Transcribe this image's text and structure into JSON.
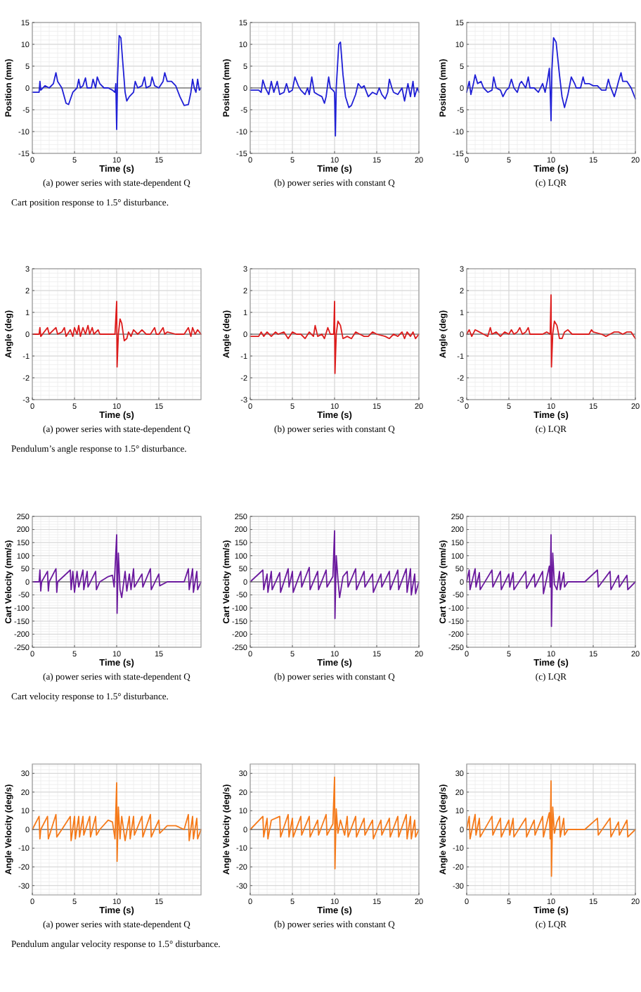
{
  "chart_data": [
    {
      "type": "line",
      "xlabel": "Time (s)",
      "ylabel": "Position (mm)",
      "subtitle": "(a) power series with state-dependent Q",
      "annotations": [
        "Cart position response to 1.5° disturbance."
      ],
      "xlim": [
        0,
        20
      ],
      "xticks": [
        0,
        5,
        10,
        15
      ],
      "ylim": [
        -15,
        15
      ],
      "yticks": [
        -15,
        -10,
        -5,
        0,
        5,
        10,
        15
      ],
      "grid": true,
      "ref_lines": [
        {
          "axis": "y",
          "value": 0,
          "color": "#808080"
        }
      ],
      "x": [
        0,
        0.8,
        0.9,
        1,
        1.5,
        2,
        2.5,
        2.8,
        3,
        3.5,
        4,
        4.3,
        4.8,
        5.3,
        5.5,
        5.7,
        6,
        6.3,
        6.5,
        7,
        7.2,
        7.5,
        7.7,
        8,
        8.5,
        9,
        9.5,
        9.8,
        9.9,
        10,
        10.1,
        10.3,
        10.5,
        10.8,
        11,
        11.2,
        11.5,
        12,
        12.2,
        12.5,
        13,
        13.3,
        13.5,
        14,
        14.2,
        14.5,
        15,
        15.5,
        15.7,
        16,
        16.5,
        17,
        17.5,
        18,
        18.5,
        18.8,
        19,
        19.2,
        19.4,
        19.6,
        19.8,
        20
      ],
      "series": [
        {
          "color": "#1f1fd6",
          "values": [
            -1,
            -1,
            1.5,
            -0.5,
            0.5,
            0,
            1,
            3.5,
            1.5,
            0,
            -3.5,
            -3.8,
            -1,
            0,
            2,
            0,
            0.5,
            2.3,
            0,
            0,
            2,
            0,
            2.5,
            1,
            0,
            0,
            -0.5,
            -1,
            1,
            -9.5,
            2,
            12,
            11.5,
            4,
            -1,
            -3,
            -2,
            -1,
            1.5,
            0,
            0.5,
            2.5,
            0,
            0.5,
            2.5,
            0.5,
            0,
            1.5,
            3.5,
            1.5,
            1.5,
            0.5,
            -2,
            -4,
            -3.8,
            -1,
            2,
            0,
            -1,
            2,
            -0.5,
            0
          ]
        }
      ]
    },
    {
      "type": "line",
      "xlabel": "Time (s)",
      "ylabel": "Position (mm)",
      "subtitle": "(b) power series with constant Q",
      "xlim": [
        0,
        20
      ],
      "xticks": [
        0,
        5,
        10,
        15,
        20
      ],
      "ylim": [
        -15,
        15
      ],
      "yticks": [
        -15,
        -10,
        -5,
        0,
        5,
        10,
        15
      ],
      "grid": true,
      "ref_lines": [
        {
          "axis": "y",
          "value": 0,
          "color": "#808080"
        }
      ],
      "x": [
        0,
        1,
        1.3,
        1.5,
        1.8,
        2.2,
        2.5,
        2.8,
        3.2,
        3.5,
        4,
        4.3,
        4.6,
        5,
        5.3,
        5.7,
        6,
        6.5,
        6.8,
        7,
        7.3,
        7.6,
        8,
        8.5,
        8.8,
        9,
        9.3,
        9.5,
        9.8,
        10,
        10.1,
        10.2,
        10.5,
        10.7,
        11,
        11.3,
        11.7,
        12,
        12.5,
        12.8,
        13.2,
        13.5,
        14,
        14.5,
        15,
        15.3,
        15.6,
        16,
        16.3,
        16.5,
        16.8,
        17,
        17.5,
        18,
        18.3,
        18.7,
        19,
        19.3,
        19.5,
        19.8,
        20
      ],
      "series": [
        {
          "color": "#1f1fd6",
          "values": [
            -0.5,
            -0.5,
            -1,
            1.8,
            0,
            -1.5,
            1.5,
            -1,
            1.5,
            -1.5,
            -1,
            1,
            -1,
            -0.5,
            2.5,
            0.5,
            -0.5,
            -1.5,
            0,
            -1.5,
            2.5,
            -1,
            -1.5,
            -2,
            -3.5,
            -2,
            2.5,
            0,
            -0.5,
            -1,
            -11,
            0,
            10,
            10.5,
            3,
            -2,
            -4.5,
            -4,
            -1.5,
            1,
            0,
            0.5,
            -2,
            -1,
            -1.5,
            0,
            -1.5,
            -2.5,
            -1,
            2,
            0,
            -1,
            -1.5,
            0,
            -3,
            1,
            -2,
            1.5,
            -2,
            0,
            -1
          ]
        }
      ]
    },
    {
      "type": "line",
      "xlabel": "Time (s)",
      "ylabel": "Position (mm)",
      "subtitle": "(c) LQR",
      "xlim": [
        0,
        20
      ],
      "xticks": [
        0,
        5,
        10,
        15,
        20
      ],
      "ylim": [
        -15,
        15
      ],
      "yticks": [
        -15,
        -10,
        -5,
        0,
        5,
        10,
        15
      ],
      "grid": true,
      "ref_lines": [
        {
          "axis": "y",
          "value": 0,
          "color": "#808080"
        }
      ],
      "x": [
        0,
        0.3,
        0.5,
        0.8,
        1,
        1.3,
        1.7,
        2,
        2.5,
        3,
        3.2,
        3.5,
        4,
        4.3,
        4.7,
        5,
        5.3,
        5.6,
        6,
        6.3,
        6.5,
        7,
        7.3,
        7.5,
        8,
        8.5,
        9,
        9.3,
        9.6,
        9.8,
        9.9,
        10,
        10.1,
        10.3,
        10.6,
        11,
        11.3,
        11.6,
        12,
        12.4,
        12.8,
        13,
        13.5,
        13.8,
        14,
        14.5,
        15,
        15.5,
        16,
        16.5,
        16.8,
        17,
        17.5,
        17.8,
        18,
        18.3,
        18.5,
        19,
        19.5,
        20
      ],
      "series": [
        {
          "color": "#1f1fd6",
          "values": [
            -1,
            1.5,
            -1.5,
            1,
            3,
            1,
            1.5,
            0,
            -1,
            -0.5,
            2.5,
            0,
            -0.5,
            -2,
            -0.5,
            0,
            2,
            0,
            -1,
            1,
            1.5,
            0,
            2.5,
            0,
            0,
            -1,
            1,
            -1,
            2,
            4.5,
            -0.5,
            -7.5,
            4,
            11.5,
            10.5,
            3,
            -2,
            -4.5,
            -1.5,
            2.5,
            1,
            0,
            0,
            2.5,
            1,
            1,
            0.5,
            0.5,
            -0.5,
            -0.5,
            2,
            0.5,
            -2,
            0,
            1.5,
            3.5,
            1.5,
            1.5,
            0,
            -2.5
          ]
        }
      ]
    },
    {
      "type": "line",
      "xlabel": "Time (s)",
      "ylabel": "Angle (deg)",
      "subtitle": "(a) power series with state-dependent Q",
      "annotations": [
        "Pendulum’s angle response to 1.5° disturbance."
      ],
      "xlim": [
        0,
        20
      ],
      "xticks": [
        0,
        5,
        10,
        15
      ],
      "ylim": [
        -3,
        3
      ],
      "yticks": [
        -3,
        -2,
        -1,
        0,
        1,
        2,
        3
      ],
      "grid": true,
      "ref_lines": [
        {
          "axis": "y",
          "value": 0,
          "color": "#808080"
        }
      ],
      "x": [
        0,
        0.8,
        0.9,
        1,
        1.8,
        2,
        2.8,
        3,
        3.5,
        3.8,
        4,
        4.5,
        4.8,
        5,
        5.3,
        5.5,
        5.7,
        6,
        6.3,
        6.6,
        6.8,
        7.1,
        7.3,
        7.8,
        8,
        9,
        9.8,
        10,
        10.05,
        10.2,
        10.4,
        10.6,
        10.9,
        11.2,
        11.4,
        11.7,
        12,
        12.5,
        13,
        13.5,
        14,
        14.5,
        14.7,
        15,
        15.5,
        15.7,
        16,
        17,
        18,
        18.5,
        18.8,
        19,
        19.3,
        19.6,
        20
      ],
      "series": [
        {
          "color": "#dd1c1c",
          "values": [
            0,
            0,
            0.3,
            -0.1,
            0.3,
            0,
            0.3,
            0,
            0.1,
            0.3,
            -0.1,
            0.2,
            -0.1,
            0.3,
            0,
            0.4,
            -0.1,
            0.3,
            0,
            0.4,
            0,
            0.3,
            0,
            0.2,
            0,
            0,
            0,
            1.5,
            -1.5,
            0,
            0.7,
            0.5,
            -0.3,
            -0.2,
            0.1,
            -0.1,
            0.2,
            0,
            0.2,
            0,
            0,
            0.3,
            0,
            0,
            0.3,
            0,
            0.1,
            0,
            0,
            0.3,
            -0.1,
            0.3,
            0,
            0.2,
            0
          ]
        }
      ]
    },
    {
      "type": "line",
      "xlabel": "Time (s)",
      "ylabel": "Angle (deg)",
      "subtitle": "(b) power series with constant Q",
      "xlim": [
        0,
        20
      ],
      "xticks": [
        0,
        5,
        10,
        15,
        20
      ],
      "ylim": [
        -3,
        3
      ],
      "yticks": [
        -3,
        -2,
        -1,
        0,
        1,
        2,
        3
      ],
      "grid": true,
      "ref_lines": [
        {
          "axis": "y",
          "value": 0,
          "color": "#808080"
        }
      ],
      "x": [
        0,
        1,
        1.3,
        1.6,
        2,
        2.5,
        3,
        3.3,
        4,
        4.5,
        5,
        5.5,
        6,
        6.5,
        7,
        7.5,
        7.7,
        8,
        8.5,
        8.8,
        9.2,
        9.5,
        9.9,
        10,
        10.05,
        10.2,
        10.4,
        10.7,
        11,
        11.5,
        12,
        12.5,
        13,
        13.5,
        14,
        14.5,
        15,
        16,
        16.5,
        17,
        17.5,
        18,
        18.3,
        18.6,
        19,
        19.3,
        19.6,
        20
      ],
      "series": [
        {
          "color": "#dd1c1c",
          "values": [
            -0.1,
            -0.1,
            0.1,
            -0.1,
            0.1,
            -0.1,
            0.1,
            0,
            0.1,
            -0.2,
            0.1,
            0,
            0,
            -0.2,
            0.1,
            -0.1,
            0.4,
            -0.1,
            0,
            -0.2,
            0.3,
            0,
            0,
            1.5,
            -1.8,
            0,
            0.6,
            0.4,
            -0.2,
            -0.1,
            -0.2,
            0.1,
            0,
            -0.1,
            -0.1,
            0.1,
            0,
            -0.1,
            -0.2,
            0,
            -0.1,
            0.1,
            -0.2,
            0.1,
            -0.1,
            0.1,
            -0.2,
            0
          ]
        }
      ]
    },
    {
      "type": "line",
      "xlabel": "Time (s)",
      "ylabel": "Angle (deg)",
      "subtitle": "(c) LQR",
      "xlim": [
        0,
        20
      ],
      "xticks": [
        0,
        5,
        10,
        15,
        20
      ],
      "ylim": [
        -3,
        3
      ],
      "yticks": [
        -3,
        -2,
        -1,
        0,
        1,
        2,
        3
      ],
      "grid": true,
      "ref_lines": [
        {
          "axis": "y",
          "value": 0,
          "color": "#808080"
        }
      ],
      "x": [
        0,
        0.3,
        0.6,
        1,
        1.5,
        2,
        2.5,
        2.8,
        3,
        3.5,
        4,
        4.5,
        5,
        5.3,
        5.6,
        6,
        6.3,
        6.6,
        7,
        7.3,
        7.5,
        8,
        9,
        9.5,
        9.9,
        10,
        10.05,
        10.2,
        10.4,
        10.7,
        11,
        11.3,
        11.6,
        12,
        12.5,
        13,
        14,
        14.5,
        14.8,
        15,
        16,
        16.5,
        17,
        17.5,
        18,
        18.5,
        19,
        19.5,
        20
      ],
      "series": [
        {
          "color": "#dd1c1c",
          "values": [
            0,
            0.2,
            -0.1,
            0.2,
            0.1,
            0,
            -0.1,
            0.3,
            0,
            0.1,
            -0.1,
            0.1,
            0,
            0.2,
            0,
            0.1,
            0.3,
            0,
            0.1,
            0.3,
            0,
            0,
            0,
            0.1,
            0,
            1.8,
            -1.5,
            0,
            0.6,
            0.4,
            -0.2,
            -0.2,
            0.1,
            0.2,
            0,
            0,
            0,
            0,
            0.2,
            0.1,
            0,
            -0.1,
            0,
            0.1,
            0.1,
            0,
            0.1,
            0.1,
            -0.2
          ]
        }
      ]
    },
    {
      "type": "line",
      "xlabel": "Time (s)",
      "ylabel": "Cart Velocity (mm/s)",
      "subtitle": "(a) power series with state-dependent Q",
      "annotations": [
        "Cart velocity response to 1.5° disturbance."
      ],
      "xlim": [
        0,
        20
      ],
      "xticks": [
        0,
        5,
        10,
        15
      ],
      "ylim": [
        -250,
        250
      ],
      "yticks": [
        -250,
        -200,
        -150,
        -100,
        -50,
        0,
        50,
        100,
        150,
        200,
        250
      ],
      "grid": true,
      "ref_lines": [
        {
          "axis": "y",
          "value": 0,
          "color": "#808080"
        }
      ],
      "x": [
        0,
        0.8,
        0.9,
        1,
        1.1,
        1.8,
        1.9,
        2,
        2.8,
        2.9,
        3,
        4.5,
        4.6,
        4.8,
        5,
        5.3,
        5.5,
        6,
        6.1,
        6.5,
        6.6,
        7.5,
        7.6,
        8,
        9,
        9.5,
        9.7,
        10,
        10.05,
        10.2,
        10.4,
        10.6,
        11,
        11.2,
        11.5,
        11.7,
        12,
        12.1,
        13,
        13.1,
        14,
        14.1,
        15,
        15.1,
        16,
        18,
        18.5,
        18.6,
        19,
        19.1,
        19.5,
        19.6,
        20
      ],
      "series": [
        {
          "color": "#6b1a9e",
          "values": [
            0,
            0,
            45,
            -35,
            0,
            40,
            -35,
            0,
            50,
            -40,
            0,
            45,
            -30,
            40,
            -40,
            40,
            -20,
            45,
            -30,
            40,
            -20,
            40,
            -30,
            0,
            20,
            25,
            -20,
            180,
            -120,
            110,
            -30,
            -60,
            40,
            -35,
            30,
            -30,
            50,
            -20,
            30,
            -20,
            50,
            -30,
            30,
            -15,
            0,
            0,
            50,
            -30,
            50,
            -40,
            40,
            -30,
            0
          ]
        }
      ]
    },
    {
      "type": "line",
      "xlabel": "Time (s)",
      "ylabel": "Cart Velocity (mm/s)",
      "subtitle": "(b) power series with constant Q",
      "xlim": [
        0,
        20
      ],
      "xticks": [
        0,
        5,
        10,
        15,
        20
      ],
      "ylim": [
        -250,
        250
      ],
      "yticks": [
        -250,
        -200,
        -150,
        -100,
        -50,
        0,
        50,
        100,
        150,
        200,
        250
      ],
      "grid": true,
      "ref_lines": [
        {
          "axis": "y",
          "value": 0,
          "color": "#808080"
        }
      ],
      "x": [
        0,
        1.5,
        1.6,
        2,
        2.1,
        2.5,
        2.6,
        3.5,
        3.6,
        4.5,
        4.6,
        5,
        5.1,
        6,
        6.1,
        7,
        7.1,
        8,
        8.1,
        9,
        9.1,
        9.8,
        10,
        10.05,
        10.2,
        10.4,
        10.6,
        11,
        11.5,
        11.6,
        12.5,
        12.6,
        13.5,
        13.6,
        14.5,
        14.6,
        15.5,
        15.6,
        16.5,
        16.6,
        17.5,
        17.6,
        18.5,
        18.6,
        19,
        19.1,
        19.5,
        19.6,
        20
      ],
      "series": [
        {
          "color": "#6b1a9e",
          "values": [
            0,
            45,
            -30,
            30,
            -40,
            40,
            -30,
            35,
            -40,
            50,
            -20,
            40,
            -40,
            40,
            -20,
            55,
            -30,
            40,
            -30,
            45,
            -20,
            20,
            195,
            -140,
            100,
            10,
            -60,
            20,
            40,
            -20,
            50,
            -30,
            40,
            -20,
            30,
            -40,
            30,
            -20,
            40,
            -30,
            45,
            -30,
            50,
            -40,
            50,
            -50,
            30,
            -45,
            0
          ]
        }
      ]
    },
    {
      "type": "line",
      "xlabel": "Time (s)",
      "ylabel": "Cart Velocity (mm/s)",
      "subtitle": "(c) LQR",
      "xlim": [
        0,
        20
      ],
      "xticks": [
        0,
        5,
        10,
        15,
        20
      ],
      "ylim": [
        -250,
        250
      ],
      "yticks": [
        -250,
        -200,
        -150,
        -100,
        -50,
        0,
        50,
        100,
        150,
        200,
        250
      ],
      "grid": true,
      "ref_lines": [
        {
          "axis": "y",
          "value": 0,
          "color": "#808080"
        }
      ],
      "x": [
        0,
        0.3,
        0.4,
        1,
        1.1,
        1.5,
        1.6,
        3,
        3.1,
        4,
        4.1,
        5,
        5.1,
        5.5,
        5.6,
        7,
        7.1,
        8,
        8.1,
        9,
        9.1,
        9.8,
        9.9,
        10,
        10.05,
        10.2,
        10.4,
        10.7,
        11,
        11.1,
        11.5,
        11.6,
        12,
        14,
        15.5,
        15.6,
        17,
        17.1,
        18,
        18.1,
        19,
        19.1,
        20
      ],
      "series": [
        {
          "color": "#6b1a9e",
          "values": [
            0,
            45,
            -30,
            50,
            -20,
            35,
            -30,
            45,
            -20,
            40,
            -30,
            30,
            -20,
            35,
            -30,
            40,
            -25,
            30,
            -20,
            40,
            -45,
            60,
            -20,
            180,
            -170,
            110,
            -10,
            -30,
            40,
            -30,
            35,
            -20,
            0,
            0,
            45,
            -20,
            40,
            -30,
            25,
            -20,
            25,
            -30,
            0
          ]
        }
      ]
    },
    {
      "type": "line",
      "xlabel": "Time (s)",
      "ylabel": "Angle Velocity (deg/s)",
      "subtitle": "(a) power series with state-dependent Q",
      "annotations": [
        "Pendulum angular velocity response to 1.5° disturbance."
      ],
      "xlim": [
        0,
        20
      ],
      "xticks": [
        0,
        5,
        10,
        15
      ],
      "ylim": [
        -35,
        35
      ],
      "yticks": [
        -30,
        -20,
        -10,
        0,
        10,
        20,
        30
      ],
      "grid": true,
      "ref_lines": [
        {
          "axis": "y",
          "value": 0,
          "color": "#808080"
        }
      ],
      "x": [
        0,
        0.8,
        0.9,
        1,
        1.8,
        1.9,
        2.8,
        2.9,
        3.5,
        4.5,
        4.6,
        5,
        5.1,
        5.5,
        5.6,
        6,
        6.1,
        6.8,
        6.9,
        7.5,
        7.6,
        8,
        9,
        9.5,
        9.8,
        10,
        10.05,
        10.2,
        10.4,
        10.6,
        11,
        11.5,
        11.6,
        12,
        12.1,
        13,
        13.1,
        14,
        14.1,
        15,
        15.1,
        16,
        17,
        18,
        18.5,
        18.6,
        19,
        19.1,
        19.5,
        19.6,
        20
      ],
      "series": [
        {
          "color": "#f57a1a",
          "values": [
            0,
            7,
            -5,
            0,
            7,
            -5,
            8,
            -4,
            0,
            7,
            -6,
            7,
            -5,
            7,
            -4,
            7,
            -3,
            7,
            -4,
            7,
            -3,
            0,
            5,
            4,
            -5,
            25,
            -17,
            12,
            -5,
            7,
            -6,
            7,
            -5,
            7,
            -3,
            7,
            -4,
            8,
            -4,
            5,
            -2,
            2,
            2,
            0,
            8,
            -6,
            7,
            -5,
            6,
            -5,
            0
          ]
        }
      ]
    },
    {
      "type": "line",
      "xlabel": "Time (s)",
      "ylabel": "Angle Velocity (deg/s)",
      "subtitle": "(b) power series with constant Q",
      "xlim": [
        0,
        20
      ],
      "xticks": [
        0,
        5,
        10,
        15,
        20
      ],
      "ylim": [
        -35,
        35
      ],
      "yticks": [
        -30,
        -20,
        -10,
        0,
        10,
        20,
        30
      ],
      "grid": true,
      "ref_lines": [
        {
          "axis": "y",
          "value": 0,
          "color": "#808080"
        }
      ],
      "x": [
        0,
        1.5,
        1.6,
        2,
        2.1,
        2.5,
        3.5,
        3.6,
        4.5,
        4.6,
        5,
        5.1,
        6,
        6.1,
        7,
        7.1,
        8,
        8.1,
        9,
        9.1,
        9.8,
        10,
        10.05,
        10.2,
        10.4,
        10.7,
        11.2,
        11.5,
        11.6,
        12.5,
        12.6,
        13.5,
        13.6,
        14.5,
        14.6,
        15.5,
        15.6,
        16.5,
        16.6,
        17.5,
        17.6,
        18.5,
        18.6,
        19,
        19.1,
        19.5,
        19.6,
        20
      ],
      "series": [
        {
          "color": "#f57a1a",
          "values": [
            0,
            7,
            -4,
            6,
            -5,
            5,
            7,
            -4,
            8,
            -4,
            6,
            -4,
            7,
            -3,
            7,
            -4,
            5,
            -3,
            8,
            -3,
            3,
            28,
            -21,
            11,
            -2,
            5,
            -3,
            7,
            -4,
            7,
            -4,
            6,
            -3,
            5,
            -5,
            5,
            -3,
            6,
            -4,
            7,
            -4,
            8,
            -5,
            7,
            -5,
            5,
            -4,
            0
          ]
        }
      ]
    },
    {
      "type": "line",
      "xlabel": "Time (s)",
      "ylabel": "Angle Velocity (deg/s)",
      "subtitle": "(c) LQR",
      "xlim": [
        0,
        20
      ],
      "xticks": [
        0,
        5,
        10,
        15,
        20
      ],
      "ylim": [
        -35,
        35
      ],
      "yticks": [
        -30,
        -20,
        -10,
        0,
        10,
        20,
        30
      ],
      "grid": true,
      "ref_lines": [
        {
          "axis": "y",
          "value": 0,
          "color": "#808080"
        }
      ],
      "x": [
        0,
        0.3,
        0.4,
        1,
        1.1,
        1.5,
        1.6,
        3,
        3.1,
        4,
        4.1,
        5,
        5.1,
        5.5,
        5.6,
        7,
        7.1,
        8,
        8.1,
        9,
        9.1,
        9.8,
        9.9,
        10,
        10.05,
        10.2,
        10.4,
        10.7,
        11,
        11.1,
        11.5,
        11.6,
        12,
        14,
        15.5,
        15.6,
        17,
        17.1,
        18,
        18.1,
        19,
        19.1,
        20
      ],
      "series": [
        {
          "color": "#f57a1a",
          "values": [
            0,
            7,
            -5,
            8,
            -3,
            6,
            -4,
            7,
            -3,
            6,
            -4,
            5,
            -3,
            6,
            -4,
            6,
            -4,
            5,
            -3,
            7,
            -4,
            9,
            -5,
            26,
            -25,
            12,
            -2,
            4,
            7,
            -4,
            6,
            -3,
            0,
            0,
            6,
            -3,
            6,
            -4,
            4,
            -3,
            5,
            -4,
            0
          ]
        }
      ]
    }
  ]
}
